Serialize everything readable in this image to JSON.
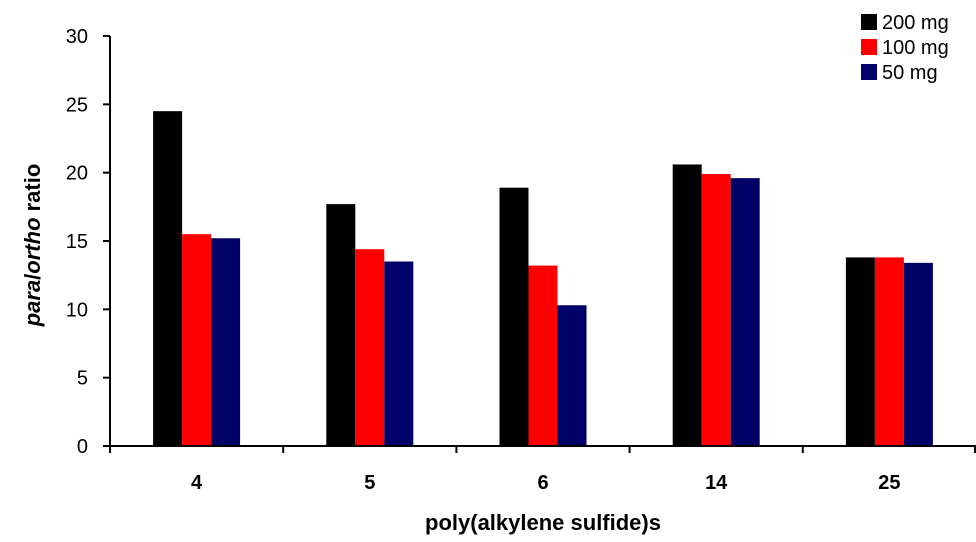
{
  "chart_data": {
    "type": "bar",
    "categories": [
      "4",
      "5",
      "6",
      "14",
      "25"
    ],
    "series": [
      {
        "name": "200 mg",
        "color": "#000000",
        "values": [
          24.5,
          17.7,
          18.9,
          20.6,
          13.8
        ]
      },
      {
        "name": "100 mg",
        "color": "#ff0000",
        "values": [
          15.5,
          14.4,
          13.2,
          19.9,
          13.8
        ]
      },
      {
        "name": "50 mg",
        "color": "#000066",
        "values": [
          15.2,
          13.5,
          10.3,
          19.6,
          13.4
        ]
      }
    ],
    "xlabel": "poly(alkylene sulfide)s",
    "ylabel": {
      "part1": "para",
      "sep": "/",
      "part2": "ortho",
      "rest": " ratio"
    },
    "ylim": [
      0,
      30
    ],
    "yticks": [
      0,
      5,
      10,
      15,
      20,
      25,
      30
    ],
    "grid": false,
    "legend_position": "top-right"
  }
}
